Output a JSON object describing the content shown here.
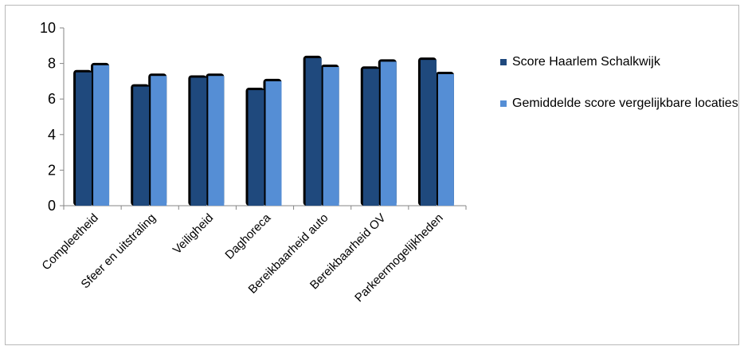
{
  "chart_data": {
    "type": "bar",
    "title": "",
    "xlabel": "",
    "ylabel": "",
    "ylim": [
      0,
      10
    ],
    "yticks": [
      0,
      2,
      4,
      6,
      8,
      10
    ],
    "grid": false,
    "legend_position": "right",
    "categories": [
      "Compleetheid",
      "Sfeer en uitstraling",
      "Veiligheid",
      "Daghoreca",
      "Bereikbaarheid auto",
      "Bereikbaarheid OV",
      "Parkeermogelijkheden"
    ],
    "series": [
      {
        "name": "Score Haarlem Schalkwijk",
        "color": "#1f497d",
        "values": [
          7.5,
          6.7,
          7.2,
          6.5,
          8.3,
          7.7,
          8.2
        ]
      },
      {
        "name": "Gemiddelde score vergelijkbare locaties",
        "color": "#558ed5",
        "values": [
          7.9,
          7.3,
          7.3,
          7.0,
          7.8,
          8.1,
          7.4
        ]
      }
    ]
  }
}
